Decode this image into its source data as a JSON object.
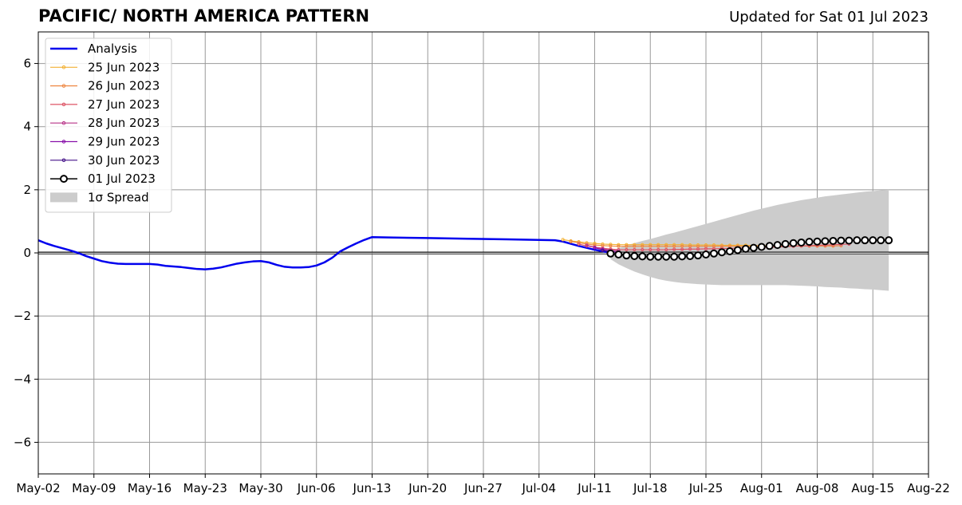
{
  "title": "PACIFIC/ NORTH AMERICA PATTERN",
  "subtitle": "Updated for Sat 01 Jul 2023",
  "chart_data": {
    "type": "line",
    "x_axis": {
      "min": "2023-05-02",
      "max": "2023-08-22",
      "tick_dates": [
        "2023-05-02",
        "2023-05-09",
        "2023-05-16",
        "2023-05-23",
        "2023-05-30",
        "2023-06-06",
        "2023-06-13",
        "2023-06-20",
        "2023-06-27",
        "2023-07-04",
        "2023-07-11",
        "2023-07-18",
        "2023-07-25",
        "2023-08-01",
        "2023-08-08",
        "2023-08-15",
        "2023-08-22"
      ],
      "tick_labels": [
        "May-02",
        "May-09",
        "May-16",
        "May-23",
        "May-30",
        "Jun-06",
        "Jun-13",
        "Jun-20",
        "Jun-27",
        "Jul-04",
        "Jul-11",
        "Jul-18",
        "Jul-25",
        "Aug-01",
        "Aug-08",
        "Aug-15",
        "Aug-22"
      ]
    },
    "y_axis": {
      "min": -7,
      "max": 7,
      "ticks": [
        -6,
        -4,
        -2,
        0,
        2,
        4,
        6
      ],
      "tick_labels": [
        "−6",
        "−4",
        "−2",
        "0",
        "2",
        "4",
        "6"
      ]
    },
    "grid": true,
    "legend_position": "top-left",
    "analysis": {
      "name": "Analysis",
      "color": "#0000ee",
      "points": [
        [
          "2023-05-02",
          0.4
        ],
        [
          "2023-05-03",
          0.3
        ],
        [
          "2023-05-04",
          0.22
        ],
        [
          "2023-05-05",
          0.15
        ],
        [
          "2023-05-06",
          0.08
        ],
        [
          "2023-05-07",
          0.0
        ],
        [
          "2023-05-08",
          -0.1
        ],
        [
          "2023-05-09",
          -0.18
        ],
        [
          "2023-05-10",
          -0.26
        ],
        [
          "2023-05-11",
          -0.31
        ],
        [
          "2023-05-12",
          -0.34
        ],
        [
          "2023-05-13",
          -0.35
        ],
        [
          "2023-05-14",
          -0.35
        ],
        [
          "2023-05-16",
          -0.35
        ],
        [
          "2023-05-17",
          -0.37
        ],
        [
          "2023-05-18",
          -0.41
        ],
        [
          "2023-05-19",
          -0.43
        ],
        [
          "2023-05-20",
          -0.45
        ],
        [
          "2023-05-21",
          -0.48
        ],
        [
          "2023-05-22",
          -0.51
        ],
        [
          "2023-05-23",
          -0.52
        ],
        [
          "2023-05-24",
          -0.5
        ],
        [
          "2023-05-25",
          -0.46
        ],
        [
          "2023-05-26",
          -0.4
        ],
        [
          "2023-05-27",
          -0.34
        ],
        [
          "2023-05-28",
          -0.3
        ],
        [
          "2023-05-29",
          -0.27
        ],
        [
          "2023-05-30",
          -0.26
        ],
        [
          "2023-05-31",
          -0.3
        ],
        [
          "2023-06-01",
          -0.38
        ],
        [
          "2023-06-02",
          -0.44
        ],
        [
          "2023-06-03",
          -0.46
        ],
        [
          "2023-06-04",
          -0.46
        ],
        [
          "2023-06-05",
          -0.45
        ],
        [
          "2023-06-06",
          -0.4
        ],
        [
          "2023-06-07",
          -0.3
        ],
        [
          "2023-06-08",
          -0.15
        ],
        [
          "2023-06-09",
          0.05
        ],
        [
          "2023-06-10",
          0.18
        ],
        [
          "2023-06-11",
          0.3
        ],
        [
          "2023-06-12",
          0.41
        ],
        [
          "2023-06-13",
          0.5
        ],
        [
          "2023-06-15",
          0.49
        ],
        [
          "2023-06-20",
          0.47
        ],
        [
          "2023-06-25",
          0.45
        ],
        [
          "2023-06-30",
          0.43
        ],
        [
          "2023-07-04",
          0.41
        ],
        [
          "2023-07-06",
          0.4
        ],
        [
          "2023-07-07",
          0.36
        ],
        [
          "2023-07-08",
          0.29
        ],
        [
          "2023-07-09",
          0.22
        ],
        [
          "2023-07-10",
          0.16
        ],
        [
          "2023-07-11",
          0.1
        ],
        [
          "2023-07-12",
          0.05
        ],
        [
          "2023-07-13",
          0.01
        ]
      ]
    },
    "forecasts": [
      {
        "name": "25 Jun 2023",
        "color": "#f2b134",
        "start": "2023-07-07",
        "points": [
          0.42,
          0.38,
          0.35,
          0.32,
          0.3,
          0.28,
          0.27,
          0.26,
          0.26,
          0.26,
          0.26,
          0.26,
          0.26,
          0.26,
          0.26,
          0.26,
          0.25,
          0.25,
          0.25,
          0.25,
          0.24,
          0.24,
          0.24,
          0.24,
          0.23,
          0.23,
          0.23,
          0.23,
          0.22,
          0.22,
          0.22,
          0.22,
          0.22,
          0.22,
          0.22
        ]
      },
      {
        "name": "26 Jun 2023",
        "color": "#ee8844",
        "start": "2023-07-08",
        "points": [
          0.36,
          0.32,
          0.28,
          0.25,
          0.23,
          0.22,
          0.21,
          0.21,
          0.21,
          0.21,
          0.21,
          0.21,
          0.21,
          0.21,
          0.21,
          0.21,
          0.21,
          0.21,
          0.21,
          0.21,
          0.21,
          0.21,
          0.21,
          0.21,
          0.21,
          0.21,
          0.21,
          0.21,
          0.22,
          0.22,
          0.22,
          0.22,
          0.22,
          0.22,
          0.23
        ]
      },
      {
        "name": "27 Jun 2023",
        "color": "#dd5566",
        "start": "2023-07-09",
        "points": [
          0.28,
          0.22,
          0.18,
          0.15,
          0.12,
          0.1,
          0.1,
          0.1,
          0.1,
          0.1,
          0.1,
          0.1,
          0.11,
          0.11,
          0.12,
          0.12,
          0.13,
          0.13,
          0.14,
          0.14,
          0.15,
          0.15,
          0.16,
          0.17,
          0.18,
          0.19,
          0.2,
          0.21,
          0.22,
          0.23,
          0.24,
          0.25,
          0.26,
          0.27,
          0.28
        ]
      },
      {
        "name": "28 Jun 2023",
        "color": "#b83388",
        "start": "2023-07-10",
        "points": [
          0.24,
          0.18,
          0.13,
          0.09,
          0.06
        ]
      },
      {
        "name": "29 Jun 2023",
        "color": "#8811aa",
        "start": "2023-07-11",
        "points": [
          0.16,
          0.1,
          0.05,
          0.02
        ]
      },
      {
        "name": "30 Jun 2023",
        "color": "#441188",
        "start": "2023-07-12",
        "points": [
          0.08,
          0.03
        ]
      }
    ],
    "latest_forecast": {
      "name": "01 Jul 2023",
      "color": "#000000",
      "start": "2023-07-13",
      "points": [
        -0.02,
        -0.05,
        -0.08,
        -0.1,
        -0.11,
        -0.12,
        -0.12,
        -0.12,
        -0.12,
        -0.11,
        -0.1,
        -0.08,
        -0.05,
        -0.02,
        0.02,
        0.05,
        0.09,
        0.13,
        0.16,
        0.19,
        0.22,
        0.25,
        0.28,
        0.31,
        0.33,
        0.35,
        0.36,
        0.37,
        0.38,
        0.39,
        0.39,
        0.4,
        0.4,
        0.4,
        0.4,
        0.4
      ]
    },
    "spread": {
      "name": "1σ Spread",
      "color": "#cccccc",
      "start": "2023-07-13",
      "upper": [
        0.05,
        0.15,
        0.24,
        0.31,
        0.38,
        0.44,
        0.51,
        0.58,
        0.64,
        0.71,
        0.78,
        0.85,
        0.92,
        0.99,
        1.06,
        1.13,
        1.2,
        1.27,
        1.34,
        1.4,
        1.46,
        1.52,
        1.57,
        1.62,
        1.67,
        1.71,
        1.75,
        1.79,
        1.82,
        1.85,
        1.88,
        1.91,
        1.94,
        1.96,
        1.98,
        2.0
      ],
      "lower": [
        -0.2,
        -0.36,
        -0.48,
        -0.59,
        -0.68,
        -0.76,
        -0.83,
        -0.88,
        -0.92,
        -0.95,
        -0.97,
        -0.99,
        -1.0,
        -1.01,
        -1.02,
        -1.02,
        -1.02,
        -1.02,
        -1.02,
        -1.02,
        -1.02,
        -1.02,
        -1.02,
        -1.03,
        -1.04,
        -1.05,
        -1.06,
        -1.08,
        -1.09,
        -1.1,
        -1.12,
        -1.13,
        -1.15,
        -1.16,
        -1.18,
        -1.2
      ]
    },
    "zero_line": 0
  }
}
